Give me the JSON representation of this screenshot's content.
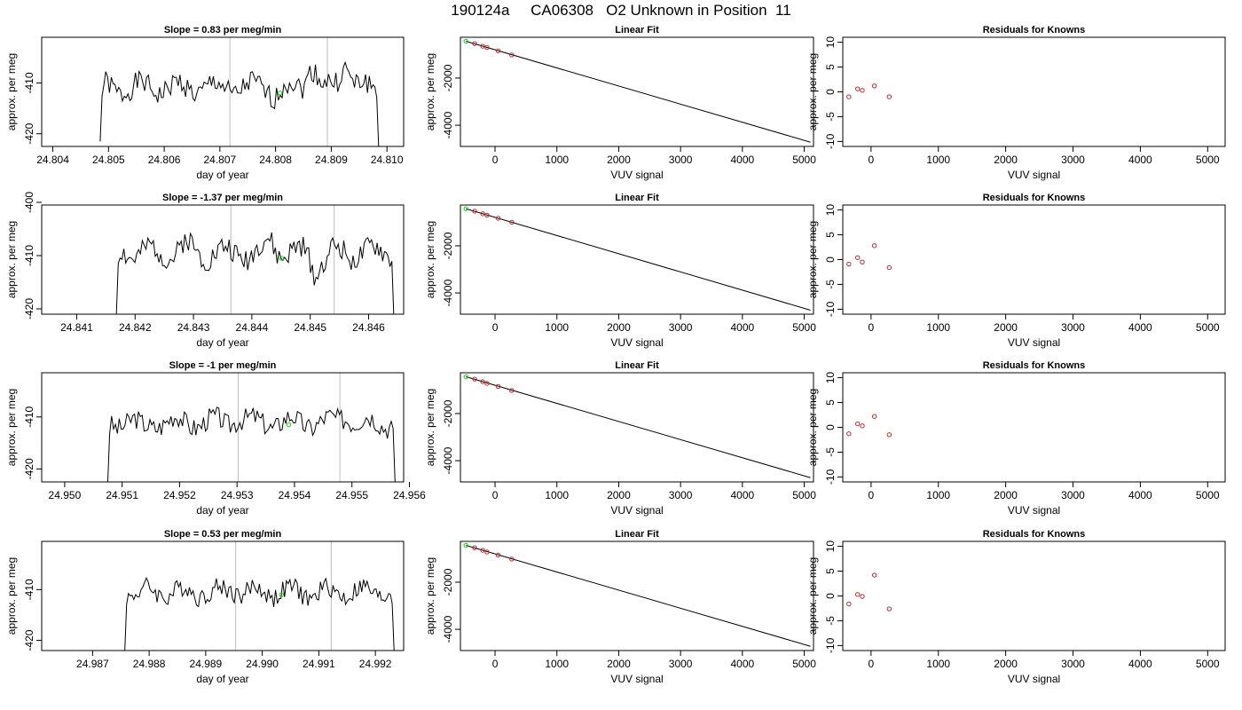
{
  "figure": {
    "title": "190124a     CA06308   O2 Unknown in Position  11"
  },
  "chart_data": [
    {
      "type": "line",
      "title": "Slope =  0.83  per meg/min",
      "xlabel": "day of year",
      "ylabel": "approx. per meg",
      "xlim": [
        24.8038,
        24.8103
      ],
      "ylim": [
        -422.5,
        -401
      ],
      "xticks": [
        "24.804",
        "24.805",
        "24.806",
        "24.807",
        "24.808",
        "24.809",
        "24.810"
      ],
      "xtick_values": [
        24.804,
        24.805,
        24.806,
        24.807,
        24.808,
        24.809,
        24.81
      ],
      "yticks": [
        "-410",
        "-420"
      ],
      "ytick_values": [
        -410,
        -420
      ],
      "vlines": [
        24.80718,
        24.80893
      ],
      "trace": {
        "x_start": 24.80485,
        "x_end": 24.80985,
        "y_start": -421.5,
        "y_end": -422.5,
        "level": -411,
        "amp": 2.2,
        "n": 150,
        "seed": 1,
        "bumps": [
          [
            0.76,
            4.5
          ],
          [
            0.88,
            5.0
          ],
          [
            0.63,
            -1.0
          ]
        ]
      },
      "marker": {
        "x": 24.80808,
        "y": -412
      }
    },
    {
      "type": "line",
      "title": "Slope =  -1.37  per meg/min",
      "xlabel": "day of year",
      "ylabel": "approx. per meg",
      "xlim": [
        24.8404,
        24.8466
      ],
      "ylim": [
        -421,
        -400.5
      ],
      "xticks": [
        "24.841",
        "24.842",
        "24.843",
        "24.844",
        "24.845",
        "24.846"
      ],
      "xtick_values": [
        24.841,
        24.842,
        24.843,
        24.844,
        24.845,
        24.846
      ],
      "yticks": [
        "-400",
        "-410",
        "-420"
      ],
      "ytick_values": [
        -400,
        -410,
        -420
      ],
      "vlines": [
        24.84364,
        24.84541
      ],
      "trace": {
        "x_start": 24.84168,
        "x_end": 24.84643,
        "y_start": -421,
        "y_end": -421,
        "level": -409.5,
        "amp": 2.2,
        "n": 150,
        "seed": 2,
        "bumps": [
          [
            0.25,
            1.5
          ],
          [
            0.55,
            2.0
          ],
          [
            0.72,
            -3.0
          ]
        ]
      },
      "marker": {
        "x": 24.84451,
        "y": -410.5
      }
    },
    {
      "type": "line",
      "title": "Slope =  -1  per meg/min",
      "xlabel": "day of year",
      "ylabel": "approx. per meg",
      "xlim": [
        24.9496,
        24.9559
      ],
      "ylim": [
        -422.5,
        -401.5
      ],
      "xticks": [
        "24.950",
        "24.951",
        "24.952",
        "24.953",
        "24.954",
        "24.955",
        "24.956"
      ],
      "xtick_values": [
        24.95,
        24.951,
        24.952,
        24.953,
        24.954,
        24.955,
        24.956
      ],
      "yticks": [
        "-410",
        "-420"
      ],
      "ytick_values": [
        -410,
        -420
      ],
      "vlines": [
        24.95302,
        24.95479
      ],
      "trace": {
        "x_start": 24.95075,
        "x_end": 24.95575,
        "y_start": -422.5,
        "y_end": -422.5,
        "level": -411,
        "amp": 2.0,
        "n": 150,
        "seed": 3,
        "bumps": [
          [
            0.12,
            -1.0
          ],
          [
            0.83,
            1.5
          ],
          [
            0.45,
            1.0
          ]
        ]
      },
      "marker": {
        "x": 24.9539,
        "y": -411.5
      }
    },
    {
      "type": "line",
      "title": "Slope =  0.53  per meg/min",
      "xlabel": "day of year",
      "ylabel": "approx. per meg",
      "xlim": [
        24.9861,
        24.9925
      ],
      "ylim": [
        -422,
        -400.5
      ],
      "xticks": [
        "24.987",
        "24.988",
        "24.989",
        "24.990",
        "24.991",
        "24.992"
      ],
      "xtick_values": [
        24.987,
        24.988,
        24.989,
        24.99,
        24.991,
        24.992
      ],
      "yticks": [
        "-410",
        "-420"
      ],
      "ytick_values": [
        -410,
        -420
      ],
      "vlines": [
        24.98953,
        24.99122
      ],
      "trace": {
        "x_start": 24.98757,
        "x_end": 24.99233,
        "y_start": -422,
        "y_end": -422,
        "level": -410.5,
        "amp": 1.9,
        "n": 150,
        "seed": 4,
        "bumps": [
          [
            0.4,
            0.8
          ],
          [
            0.7,
            -0.5
          ]
        ]
      },
      "marker": {
        "x": 24.99034,
        "y": -411
      }
    },
    {
      "type": "scatter",
      "title": "Linear Fit",
      "xlabel": "VUV signal",
      "ylabel": "approx. per meg",
      "xlim": [
        -560,
        5150
      ],
      "ylim": [
        -4900,
        -270
      ],
      "xticks": [
        "0",
        "1000",
        "2000",
        "3000",
        "4000",
        "5000"
      ],
      "xtick_values": [
        0,
        1000,
        2000,
        3000,
        4000,
        5000
      ],
      "yticks": [
        "-2000",
        "-4000"
      ],
      "ytick_values": [
        -2000,
        -4000
      ],
      "fit_line": [
        [
          -470,
          -440
        ],
        [
          5100,
          -4720
        ]
      ],
      "points": {
        "x": [
          -330,
          -200,
          -130,
          50,
          270
        ],
        "y": [
          -540,
          -650,
          -700,
          -845,
          -1020
        ]
      },
      "unknown": {
        "x": -470,
        "y": -440
      }
    },
    {
      "type": "scatter",
      "title": "Linear Fit",
      "xlabel": "VUV signal",
      "ylabel": "approx. per meg",
      "xlim": [
        -560,
        5150
      ],
      "ylim": [
        -4900,
        -270
      ],
      "xticks": [
        "0",
        "1000",
        "2000",
        "3000",
        "4000",
        "5000"
      ],
      "xtick_values": [
        0,
        1000,
        2000,
        3000,
        4000,
        5000
      ],
      "yticks": [
        "-2000",
        "-4000"
      ],
      "ytick_values": [
        -2000,
        -4000
      ],
      "fit_line": [
        [
          -470,
          -430
        ],
        [
          5100,
          -4730
        ]
      ],
      "points": {
        "x": [
          -330,
          -200,
          -130,
          50,
          270
        ],
        "y": [
          -530,
          -640,
          -700,
          -830,
          -1000
        ]
      },
      "unknown": {
        "x": -470,
        "y": -430
      }
    },
    {
      "type": "scatter",
      "title": "Linear Fit",
      "xlabel": "VUV signal",
      "ylabel": "approx. per meg",
      "xlim": [
        -560,
        5150
      ],
      "ylim": [
        -4900,
        -270
      ],
      "xticks": [
        "0",
        "1000",
        "2000",
        "3000",
        "4000",
        "5000"
      ],
      "xtick_values": [
        0,
        1000,
        2000,
        3000,
        4000,
        5000
      ],
      "yticks": [
        "-2000",
        "-4000"
      ],
      "ytick_values": [
        -2000,
        -4000
      ],
      "fit_line": [
        [
          -470,
          -440
        ],
        [
          5100,
          -4720
        ]
      ],
      "points": {
        "x": [
          -330,
          -200,
          -130,
          50,
          270
        ],
        "y": [
          -540,
          -650,
          -720,
          -850,
          -1020
        ]
      },
      "unknown": {
        "x": -470,
        "y": -440
      }
    },
    {
      "type": "scatter",
      "title": "Linear Fit",
      "xlabel": "VUV signal",
      "ylabel": "approx. per meg",
      "xlim": [
        -560,
        5150
      ],
      "ylim": [
        -4900,
        -270
      ],
      "xticks": [
        "0",
        "1000",
        "2000",
        "3000",
        "4000",
        "5000"
      ],
      "xtick_values": [
        0,
        1000,
        2000,
        3000,
        4000,
        5000
      ],
      "yticks": [
        "-2000",
        "-4000"
      ],
      "ytick_values": [
        -2000,
        -4000
      ],
      "fit_line": [
        [
          -470,
          -440
        ],
        [
          5100,
          -4720
        ]
      ],
      "points": {
        "x": [
          -330,
          -200,
          -130,
          50,
          270
        ],
        "y": [
          -540,
          -650,
          -720,
          -850,
          -1020
        ]
      },
      "unknown": {
        "x": -470,
        "y": -440
      }
    },
    {
      "type": "scatter",
      "title": "Residuals for Knowns",
      "xlabel": "VUV signal",
      "ylabel": "approx. per meg",
      "xlim": [
        -420,
        5260
      ],
      "ylim": [
        -11,
        11
      ],
      "xticks": [
        "0",
        "1000",
        "2000",
        "3000",
        "4000",
        "5000"
      ],
      "xtick_values": [
        0,
        1000,
        2000,
        3000,
        4000,
        5000
      ],
      "yticks": [
        "-10",
        "-5",
        "0",
        "5",
        "10"
      ],
      "ytick_values": [
        -10,
        -5,
        0,
        5,
        10
      ],
      "points": {
        "x": [
          -330,
          -200,
          -130,
          50,
          270
        ],
        "y": [
          -1.0,
          0.6,
          0.3,
          1.2,
          -1.0
        ]
      }
    },
    {
      "type": "scatter",
      "title": "Residuals for Knowns",
      "xlabel": "VUV signal",
      "ylabel": "approx. per meg",
      "xlim": [
        -420,
        5260
      ],
      "ylim": [
        -11,
        11
      ],
      "xticks": [
        "0",
        "1000",
        "2000",
        "3000",
        "4000",
        "5000"
      ],
      "xtick_values": [
        0,
        1000,
        2000,
        3000,
        4000,
        5000
      ],
      "yticks": [
        "-10",
        "-5",
        "0",
        "5",
        "10"
      ],
      "ytick_values": [
        -10,
        -5,
        0,
        5,
        10
      ],
      "points": {
        "x": [
          -330,
          -200,
          -130,
          50,
          270
        ],
        "y": [
          -0.9,
          0.4,
          -0.5,
          2.8,
          -1.6
        ]
      }
    },
    {
      "type": "scatter",
      "title": "Residuals for Knowns",
      "xlabel": "VUV signal",
      "ylabel": "approx. per meg",
      "xlim": [
        -420,
        5260
      ],
      "ylim": [
        -11,
        11
      ],
      "xticks": [
        "0",
        "1000",
        "2000",
        "3000",
        "4000",
        "5000"
      ],
      "xtick_values": [
        0,
        1000,
        2000,
        3000,
        4000,
        5000
      ],
      "yticks": [
        "-10",
        "-5",
        "0",
        "5",
        "10"
      ],
      "ytick_values": [
        -10,
        -5,
        0,
        5,
        10
      ],
      "points": {
        "x": [
          -330,
          -200,
          -130,
          50,
          270
        ],
        "y": [
          -1.3,
          0.7,
          0.3,
          2.2,
          -1.5
        ]
      }
    },
    {
      "type": "scatter",
      "title": "Residuals for Knowns",
      "xlabel": "VUV signal",
      "ylabel": "approx. per meg",
      "xlim": [
        -420,
        5260
      ],
      "ylim": [
        -11,
        11
      ],
      "xticks": [
        "0",
        "1000",
        "2000",
        "3000",
        "4000",
        "5000"
      ],
      "xtick_values": [
        0,
        1000,
        2000,
        3000,
        4000,
        5000
      ],
      "yticks": [
        "-10",
        "-5",
        "0",
        "5",
        "10"
      ],
      "ytick_values": [
        -10,
        -5,
        0,
        5,
        10
      ],
      "points": {
        "x": [
          -330,
          -200,
          -130,
          50,
          270
        ],
        "y": [
          -1.6,
          0.3,
          -0.1,
          4.2,
          -2.6
        ]
      }
    }
  ],
  "colors": {
    "trace": "#000000",
    "vline": "#bebebe",
    "known_marker": "#cd2626",
    "unknown_marker": "#00e000",
    "axis": "#000000"
  }
}
